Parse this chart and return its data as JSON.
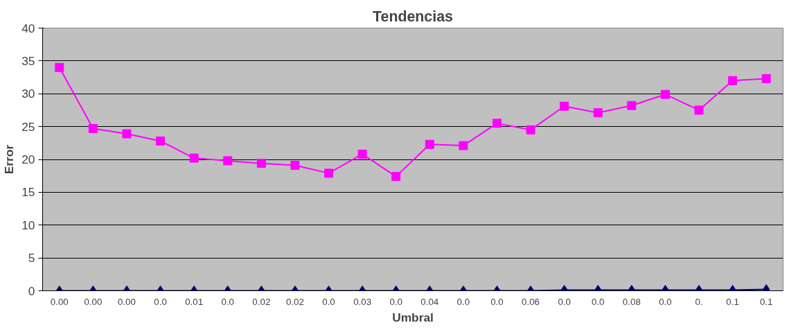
{
  "chart_data": {
    "type": "line",
    "title": "Tendencias",
    "xlabel": "Umbral",
    "ylabel": "Error",
    "categories": [
      "0.00",
      "0.00",
      "0.00",
      "0.0",
      "0.01",
      "0.0",
      "0.02",
      "0.02",
      "0.0",
      "0.03",
      "0.0",
      "0.04",
      "0.0",
      "0.0",
      "0.06",
      "0.0",
      "0.0",
      "0.08",
      "0.0",
      "0.",
      "0.1",
      "0.1"
    ],
    "series": [
      {
        "color": "#000080",
        "marker": "diamond",
        "values": [
          0,
          0,
          0,
          0,
          0,
          0,
          0,
          0,
          0,
          0,
          0,
          0,
          0,
          0,
          0,
          0.1,
          0.1,
          0.1,
          0.1,
          0.1,
          0.1,
          0.2
        ]
      },
      {
        "color": "#ff00ff",
        "marker": "square",
        "values": [
          34.0,
          24.7,
          23.9,
          22.8,
          20.2,
          19.8,
          19.4,
          19.1,
          17.9,
          20.8,
          17.4,
          22.3,
          22.1,
          25.5,
          24.5,
          28.1,
          27.1,
          28.2,
          29.9,
          27.5,
          32.0,
          32.3
        ]
      }
    ],
    "ylim": [
      0,
      40
    ],
    "yticks": [
      0,
      5,
      10,
      15,
      20,
      25,
      30,
      35,
      40
    ],
    "grid": "y",
    "line_style": "solid"
  }
}
